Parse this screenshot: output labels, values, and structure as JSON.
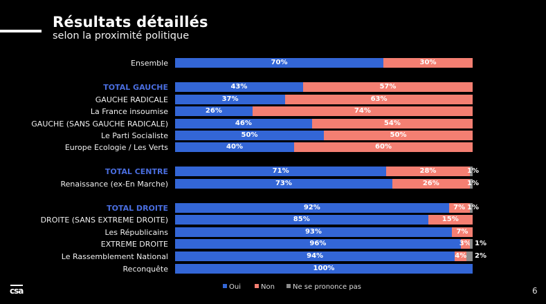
{
  "header": {
    "title": "Résultats détaillés",
    "subtitle": "selon la proximité politique"
  },
  "footer": {
    "logo_text": "csa",
    "page_number": "6"
  },
  "chart_data": {
    "type": "bar",
    "orientation": "horizontal",
    "stacked": true,
    "title": "Résultats détaillés",
    "subtitle": "selon la proximité politique",
    "xlabel": "",
    "ylabel": "",
    "xlim": [
      0,
      100
    ],
    "grid": false,
    "legend_position": "bottom",
    "colors": {
      "Oui": "#3366d6",
      "Non": "#f47f72",
      "Ne se prononce pas": "#8c8c8c",
      "group_label": "#4a6ee0"
    },
    "legend": [
      "Oui",
      "Non",
      "Ne se prononce pas"
    ],
    "categories": [
      "Ensemble",
      "TOTAL GAUCHE",
      "GAUCHE RADICALE",
      "La France insoumise",
      "GAUCHE (SANS GAUCHE RADICALE)",
      "Le Parti Socialiste",
      "Europe Ecologie / Les Verts",
      "TOTAL CENTRE",
      "Renaissance (ex-En Marche)",
      "TOTAL DROITE",
      "DROITE (SANS EXTREME DROITE)",
      "Les Républicains",
      "EXTREME DROITE",
      "Le Rassemblement National",
      "Reconquête"
    ],
    "is_group_total": [
      false,
      true,
      false,
      false,
      false,
      false,
      false,
      true,
      false,
      true,
      false,
      false,
      false,
      false,
      false
    ],
    "series": [
      {
        "name": "Oui",
        "values": [
          70,
          43,
          37,
          26,
          46,
          50,
          40,
          71,
          73,
          92,
          85,
          93,
          96,
          94,
          100
        ]
      },
      {
        "name": "Non",
        "values": [
          30,
          57,
          63,
          74,
          54,
          50,
          60,
          28,
          26,
          7,
          15,
          7,
          3,
          4,
          0
        ]
      },
      {
        "name": "Ne se prononce pas",
        "values": [
          0,
          0,
          0,
          0,
          0,
          0,
          0,
          1,
          1,
          1,
          0,
          0,
          1,
          2,
          0
        ]
      }
    ],
    "data_labels_suffix": "%"
  }
}
